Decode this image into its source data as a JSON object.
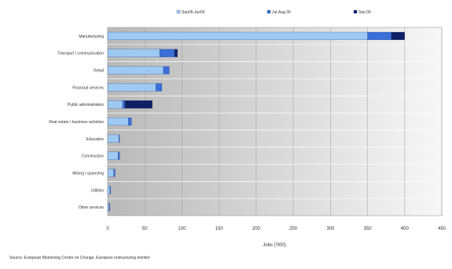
{
  "chart_data": {
    "type": "bar",
    "orientation": "horizontal",
    "stacked": true,
    "categories": [
      "Manufacturing",
      "Transport / communication",
      "Retail",
      "Financial services",
      "Public administration",
      "Real estate / business activities",
      "Education",
      "Construction",
      "Mining / quarrying",
      "Utilities",
      "Other services"
    ],
    "series": [
      {
        "name": "Sep05-Jun06",
        "color": "#9ec9f2",
        "values": [
          350,
          70,
          75,
          65,
          20,
          28,
          15,
          14,
          8,
          3,
          2
        ]
      },
      {
        "name": "Jul-Aug 06",
        "color": "#3a6fd8",
        "values": [
          32,
          20,
          8,
          8,
          3,
          4,
          1,
          2,
          2,
          1,
          1
        ]
      },
      {
        "name": "Sep 06",
        "color": "#0e1f63",
        "values": [
          18,
          4,
          0,
          0,
          37,
          0,
          0,
          0,
          0,
          0,
          0
        ]
      }
    ],
    "xlabel": "Jobs ('000)",
    "xlim": [
      0,
      450
    ],
    "xticks": [
      0,
      50,
      100,
      150,
      200,
      250,
      300,
      350,
      400,
      450
    ],
    "grid": true,
    "legend_position": "top"
  },
  "source_note": "Source: European Monitoring Centre on Change, European restructuring monitor"
}
